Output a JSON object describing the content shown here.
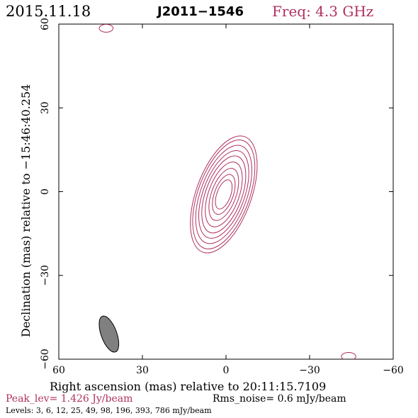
{
  "header": {
    "date": "2015.11.18",
    "source": "J2011−1546",
    "freq": "Freq: 4.3 GHz"
  },
  "footer": {
    "peak": "Peak_lev=  1.426 Jy/beam",
    "rms": "Rms_noise=  0.6 mJy/beam",
    "levels": "Levels:   3,   6,  12,  25,  49,  98, 196, 393, 786 mJy/beam"
  },
  "colors": {
    "contour": "#b03060",
    "beam_fill": "#808080",
    "axis": "#000000"
  },
  "chart_data": {
    "type": "contour",
    "xlabel": "Right ascension (mas) relative to 20:11:15.7109",
    "ylabel": "Declination (mas) relative to −15:46:40.254",
    "xlim": [
      60,
      -60
    ],
    "ylim": [
      -60,
      60
    ],
    "xticks": [
      60,
      30,
      0,
      -30,
      -60
    ],
    "yticks": [
      60,
      30,
      0,
      -30,
      -60
    ],
    "xtick_labels": [
      "60",
      "30",
      "0",
      "−30",
      "−60"
    ],
    "ytick_labels": [
      "60",
      "30",
      "0",
      "−30",
      "−60"
    ],
    "levels_mJy": [
      3,
      6,
      12,
      25,
      49,
      98,
      196,
      393,
      786
    ],
    "core": {
      "x": 0.8,
      "y": -1.0,
      "pa_deg": 20,
      "semi_major": [
        5.5,
        7.5,
        9.8,
        12.2,
        14.5,
        16.5,
        18.5,
        20.5,
        22.0
      ],
      "axis_ratio": 0.45
    },
    "artifacts": [
      {
        "x": 43,
        "y": 58.5,
        "a": 2.5,
        "b": 1.4
      },
      {
        "x": -44,
        "y": -59,
        "a": 2.6,
        "b": 1.4
      }
    ],
    "beam": {
      "x": 42,
      "y": -51,
      "semi_major": 6.8,
      "semi_minor": 2.8,
      "pa_deg": 20
    }
  }
}
